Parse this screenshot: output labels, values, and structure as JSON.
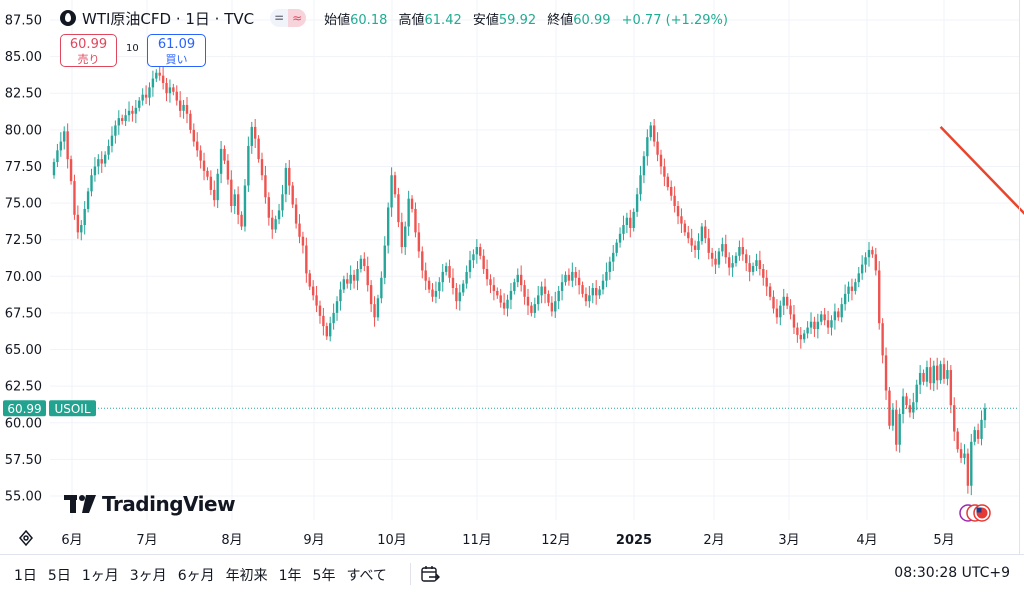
{
  "legend": {
    "symbol": "WTI原油CFD · 1日 · TVC",
    "pill_left": "=",
    "pill_right": "≈",
    "open_label": "始値",
    "open": "60.18",
    "high_label": "高値",
    "high": "61.42",
    "low_label": "安値",
    "low": "59.92",
    "close_label": "終値",
    "close": "60.99",
    "change": "+0.77 (+1.29%)"
  },
  "trade": {
    "sell_price": "60.99",
    "sell_label": "売り",
    "spread": "10",
    "buy_price": "61.09",
    "buy_label": "買い"
  },
  "brand": "TradingView",
  "price_tag": {
    "value": "60.99",
    "symbol": "USOIL"
  },
  "ranges": [
    "1日",
    "5日",
    "1ヶ月",
    "3ヶ月",
    "6ヶ月",
    "年初来",
    "1年",
    "5年",
    "すべて"
  ],
  "clock": "08:30:28 UTC+9",
  "colors": {
    "up": "#26a69a",
    "down": "#ef5350",
    "arrow": "#e8452c",
    "grid": "#f0f3fa",
    "text": "#131722"
  },
  "chart_data": {
    "type": "candlestick",
    "title": "WTI原油CFD · 1日 · TVC",
    "ylim": [
      54.0,
      88.3
    ],
    "ytick_labels": [
      "55.00",
      "57.50",
      "60.00",
      "62.50",
      "65.00",
      "67.50",
      "70.00",
      "72.50",
      "75.00",
      "77.50",
      "80.00",
      "82.50",
      "85.00",
      "87.50"
    ],
    "xtick_labels": [
      "6月",
      "7月",
      "8月",
      "9月",
      "10月",
      "11月",
      "12月",
      "2025",
      "2月",
      "3月",
      "4月",
      "5月"
    ],
    "last_close": 60.99,
    "arrow_annotation": {
      "from": [
        260,
        80.2
      ],
      "to": [
        312,
        67.8
      ],
      "color": "#e8452c"
    },
    "x_unit": "trading day index",
    "close": [
      77.8,
      78.6,
      79.2,
      79.9,
      78.0,
      76.5,
      74.2,
      73.0,
      73.5,
      74.6,
      75.8,
      76.9,
      77.5,
      78.0,
      77.7,
      78.3,
      78.9,
      79.6,
      80.3,
      80.8,
      80.6,
      81.0,
      81.3,
      81.1,
      81.5,
      82.0,
      82.4,
      82.2,
      82.9,
      83.5,
      83.9,
      83.7,
      83.2,
      82.5,
      82.9,
      82.6,
      82.0,
      81.3,
      81.7,
      81.1,
      80.0,
      79.2,
      78.6,
      77.9,
      77.2,
      76.8,
      75.9,
      75.2,
      77.0,
      78.7,
      77.9,
      76.6,
      74.8,
      75.6,
      74.2,
      73.4,
      76.2,
      78.9,
      80.2,
      79.4,
      78.0,
      76.9,
      75.4,
      74.0,
      73.2,
      73.9,
      74.5,
      75.6,
      77.4,
      76.2,
      74.9,
      73.6,
      72.7,
      72.1,
      70.2,
      69.3,
      68.7,
      68.0,
      67.3,
      66.6,
      65.9,
      66.8,
      67.5,
      68.3,
      69.1,
      69.8,
      69.5,
      70.1,
      69.7,
      70.5,
      71.2,
      70.7,
      69.4,
      68.1,
      67.2,
      68.5,
      69.9,
      72.1,
      74.7,
      76.9,
      75.6,
      73.7,
      72.0,
      73.4,
      75.3,
      74.6,
      73.0,
      71.7,
      70.4,
      69.7,
      69.1,
      68.6,
      69.0,
      69.6,
      70.3,
      70.7,
      69.9,
      69.2,
      68.3,
      68.9,
      69.5,
      70.3,
      71.1,
      71.5,
      72.0,
      71.4,
      70.5,
      69.8,
      69.4,
      69.0,
      68.7,
      68.2,
      67.8,
      68.4,
      69.0,
      69.6,
      70.1,
      69.4,
      68.6,
      68.0,
      67.5,
      68.1,
      68.7,
      69.3,
      68.8,
      68.2,
      67.6,
      68.3,
      69.0,
      69.6,
      70.1,
      69.7,
      70.3,
      69.9,
      69.4,
      68.8,
      68.3,
      68.7,
      69.2,
      68.7,
      69.1,
      69.7,
      70.3,
      71.0,
      71.6,
      72.3,
      72.9,
      73.5,
      74.0,
      73.3,
      74.4,
      75.6,
      76.9,
      78.2,
      79.5,
      80.3,
      79.2,
      78.3,
      77.5,
      76.8,
      76.1,
      75.5,
      74.8,
      74.1,
      73.6,
      73.0,
      72.6,
      72.1,
      71.8,
      72.4,
      73.4,
      72.6,
      71.6,
      71.2,
      70.8,
      71.7,
      72.2,
      71.3,
      70.6,
      70.9,
      71.4,
      72.0,
      71.5,
      70.9,
      70.3,
      70.7,
      71.1,
      70.5,
      69.9,
      69.3,
      68.6,
      67.8,
      67.2,
      68.0,
      68.6,
      68.0,
      67.4,
      66.5,
      66.0,
      65.7,
      66.1,
      66.5,
      66.9,
      66.4,
      66.9,
      67.4,
      67.0,
      66.5,
      67.0,
      67.6,
      67.2,
      68.1,
      68.8,
      69.3,
      69.0,
      69.6,
      70.2,
      70.8,
      71.3,
      71.8,
      71.5,
      70.4,
      66.8,
      64.6,
      62.2,
      59.8,
      60.9,
      58.5,
      60.6,
      61.8,
      61.2,
      60.7,
      61.4,
      62.6,
      63.4,
      62.8,
      63.8,
      62.7,
      63.9,
      62.9,
      64.0,
      63.0,
      63.6,
      61.2,
      59.4,
      58.2,
      57.6,
      57.9,
      55.7,
      58.7,
      59.5,
      58.9,
      60.2,
      60.99
    ],
    "open": [
      76.9,
      77.8,
      78.6,
      79.2,
      79.9,
      78.0,
      76.5,
      74.2,
      73.0,
      73.5,
      74.6,
      75.8,
      76.9,
      77.5,
      78.0,
      77.7,
      78.3,
      78.9,
      79.6,
      80.3,
      80.8,
      80.6,
      81.0,
      81.3,
      81.1,
      81.5,
      82.0,
      82.4,
      82.2,
      82.9,
      83.5,
      83.9,
      83.7,
      83.2,
      82.5,
      82.9,
      82.6,
      82.0,
      81.3,
      81.7,
      81.1,
      80.0,
      79.2,
      78.6,
      77.9,
      77.2,
      76.8,
      75.9,
      75.2,
      77.0,
      78.7,
      77.9,
      76.6,
      74.8,
      75.6,
      74.2,
      73.4,
      76.2,
      78.9,
      80.2,
      79.4,
      78.0,
      76.9,
      75.4,
      74.0,
      73.2,
      73.9,
      74.5,
      75.6,
      77.4,
      76.2,
      74.9,
      73.6,
      72.7,
      72.1,
      70.2,
      69.3,
      68.7,
      68.0,
      67.3,
      66.6,
      65.9,
      66.8,
      67.5,
      68.3,
      69.1,
      69.8,
      69.5,
      70.1,
      69.7,
      70.5,
      71.2,
      70.7,
      69.4,
      68.1,
      67.2,
      68.5,
      69.9,
      72.1,
      74.7,
      76.9,
      75.6,
      73.7,
      72.0,
      73.4,
      75.3,
      74.6,
      73.0,
      71.7,
      70.4,
      69.7,
      69.1,
      68.6,
      69.0,
      69.6,
      70.3,
      70.7,
      69.9,
      69.2,
      68.3,
      68.9,
      69.5,
      70.3,
      71.1,
      71.5,
      72.0,
      71.4,
      70.5,
      69.8,
      69.4,
      69.0,
      68.7,
      68.2,
      67.8,
      68.4,
      69.0,
      69.6,
      70.1,
      69.4,
      68.6,
      68.0,
      67.5,
      68.1,
      68.7,
      69.3,
      68.8,
      68.2,
      67.6,
      68.3,
      69.0,
      69.6,
      70.1,
      69.7,
      70.3,
      69.9,
      69.4,
      68.8,
      68.3,
      68.7,
      69.2,
      68.7,
      69.1,
      69.7,
      70.3,
      71.0,
      71.6,
      72.3,
      72.9,
      73.5,
      74.0,
      73.3,
      74.4,
      75.6,
      76.9,
      78.2,
      79.5,
      80.3,
      79.2,
      78.3,
      77.5,
      76.8,
      76.1,
      75.5,
      74.8,
      74.1,
      73.6,
      73.0,
      72.6,
      72.1,
      71.8,
      72.4,
      73.4,
      72.6,
      71.6,
      71.2,
      70.8,
      71.7,
      72.2,
      71.3,
      70.6,
      70.9,
      71.4,
      72.0,
      71.5,
      70.9,
      70.3,
      70.7,
      71.1,
      70.5,
      69.9,
      69.3,
      68.6,
      67.8,
      67.2,
      68.0,
      68.6,
      68.0,
      67.4,
      66.5,
      66.0,
      65.7,
      66.1,
      66.5,
      66.9,
      66.4,
      66.9,
      67.4,
      67.0,
      66.5,
      67.0,
      67.6,
      67.2,
      68.1,
      68.8,
      69.3,
      69.0,
      69.6,
      70.2,
      70.8,
      71.3,
      71.8,
      71.5,
      70.4,
      66.8,
      64.6,
      62.2,
      59.8,
      60.9,
      58.5,
      60.6,
      61.8,
      61.2,
      60.7,
      61.4,
      62.6,
      63.4,
      62.8,
      63.8,
      62.7,
      63.9,
      62.9,
      64.0,
      63.0,
      63.6,
      61.2,
      59.4,
      58.2,
      57.6,
      57.9,
      55.7,
      58.7,
      59.5,
      58.9,
      60.18
    ],
    "high_low_wick": 0.6
  }
}
